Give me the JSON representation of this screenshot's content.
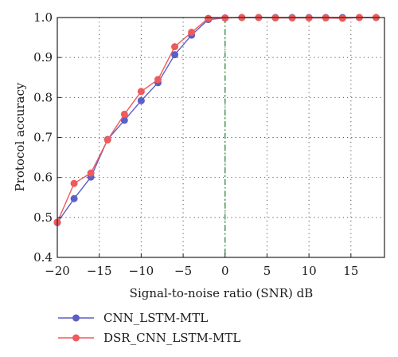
{
  "chart_data": {
    "type": "line",
    "xlabel": "Signal-to-noise ratio (SNR) dB",
    "ylabel": "Protocol accuracy",
    "xlim": [
      -20,
      19
    ],
    "ylim": [
      0.4,
      1.0
    ],
    "xticks": [
      -20,
      -15,
      -10,
      -5,
      0,
      5,
      10,
      15
    ],
    "yticks": [
      0.4,
      0.5,
      0.6,
      0.7,
      0.8,
      0.9,
      1.0
    ],
    "xtick_labels": [
      "−20",
      "−15",
      "−10",
      "−5",
      "0",
      "5",
      "10",
      "15"
    ],
    "ytick_labels": [
      "0.4",
      "0.5",
      "0.6",
      "0.7",
      "0.8",
      "0.9",
      "1.0"
    ],
    "grid": "dotted",
    "reference_line": {
      "x": 0,
      "style": "dash-dot",
      "color": "#2e8b3a"
    },
    "legend_position": "below-left",
    "x": [
      -20,
      -18,
      -16,
      -14,
      -12,
      -10,
      -8,
      -6,
      -4,
      -2,
      0,
      2,
      4,
      6,
      8,
      10,
      12,
      14,
      16,
      18
    ],
    "series": [
      {
        "name": "CNN_LSTM-MTL",
        "color": "#5b5fc7",
        "values": [
          0.487,
          0.547,
          0.601,
          0.695,
          0.743,
          0.792,
          0.837,
          0.907,
          0.956,
          0.995,
          0.999,
          1.0,
          1.0,
          1.0,
          1.0,
          1.0,
          1.0,
          1.0,
          1.0,
          1.0
        ]
      },
      {
        "name": "DSR_CNN_LSTM-MTL",
        "color": "#ef5a5a",
        "values": [
          0.488,
          0.585,
          0.611,
          0.694,
          0.758,
          0.815,
          0.845,
          0.927,
          0.963,
          0.998,
          0.999,
          1.0,
          1.0,
          0.999,
          0.999,
          0.999,
          0.999,
          0.998,
          1.0,
          1.0
        ]
      }
    ]
  }
}
